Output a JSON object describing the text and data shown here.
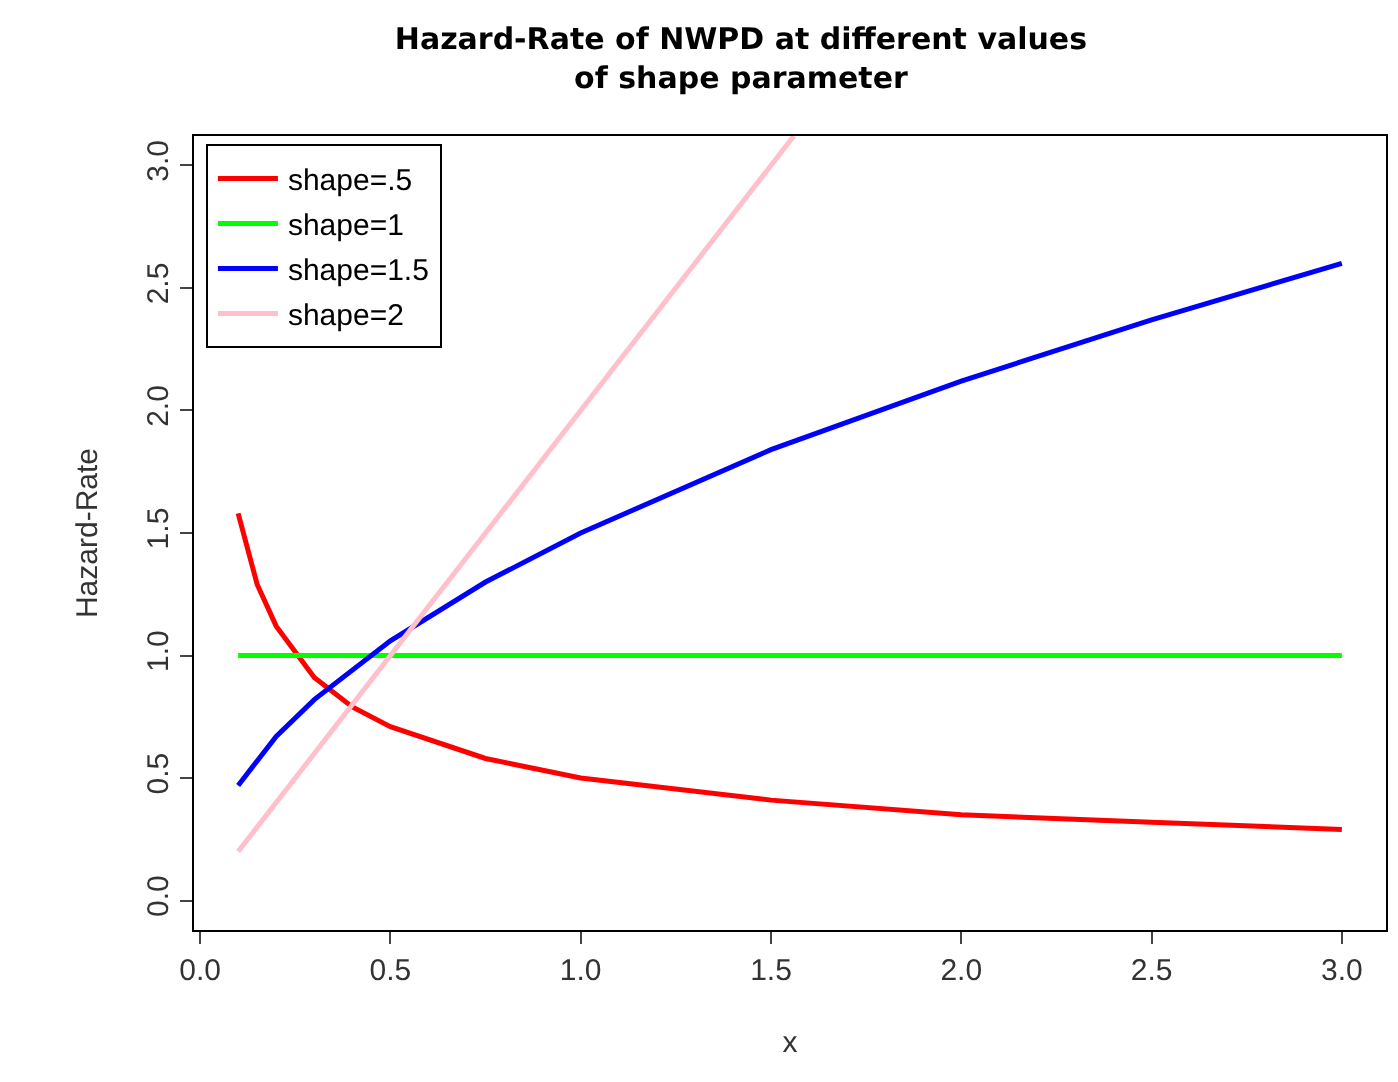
{
  "chart_data": {
    "type": "line",
    "title": "Hazard-Rate of NWPD at different values\nof shape parameter",
    "xlabel": "x",
    "ylabel": "Hazard-Rate",
    "series": [
      {
        "name": "shape=.5",
        "color": "#ff0000",
        "x": [
          0.1,
          0.15,
          0.2,
          0.3,
          0.4,
          0.5,
          0.75,
          1,
          1.5,
          2,
          2.5,
          3
        ],
        "values": [
          1.58,
          1.29,
          1.12,
          0.91,
          0.79,
          0.71,
          0.58,
          0.5,
          0.41,
          0.35,
          0.32,
          0.29
        ]
      },
      {
        "name": "shape=1",
        "color": "#00ff00",
        "x": [
          0.1,
          3
        ],
        "values": [
          1,
          1
        ]
      },
      {
        "name": "shape=1.5",
        "color": "#0000ff",
        "x": [
          0.1,
          0.2,
          0.3,
          0.5,
          0.75,
          1,
          1.5,
          2,
          2.5,
          3
        ],
        "values": [
          0.47,
          0.67,
          0.82,
          1.06,
          1.3,
          1.5,
          1.84,
          2.12,
          2.37,
          2.6
        ]
      },
      {
        "name": "shape=2",
        "color": "#ffc0cb",
        "x": [
          0.1,
          1.56
        ],
        "values": [
          0.2,
          3.12
        ]
      }
    ],
    "xlim": [
      -0.016,
      3.116
    ],
    "ylim": [
      -0.12,
      3.12
    ],
    "xticks": [
      {
        "value": 0,
        "label": "0.0"
      },
      {
        "value": 0.5,
        "label": "0.5"
      },
      {
        "value": 1,
        "label": "1.0"
      },
      {
        "value": 1.5,
        "label": "1.5"
      },
      {
        "value": 2,
        "label": "2.0"
      },
      {
        "value": 2.5,
        "label": "2.5"
      },
      {
        "value": 3,
        "label": "3.0"
      }
    ],
    "yticks": [
      {
        "value": 0,
        "label": "0.0"
      },
      {
        "value": 0.5,
        "label": "0.5"
      },
      {
        "value": 1,
        "label": "1.0"
      },
      {
        "value": 1.5,
        "label": "1.5"
      },
      {
        "value": 2,
        "label": "2.0"
      },
      {
        "value": 2.5,
        "label": "2.5"
      },
      {
        "value": 3,
        "label": "3.0"
      }
    ],
    "grid": false,
    "legend": "top left",
    "marker": "none",
    "line_style": "solid"
  }
}
